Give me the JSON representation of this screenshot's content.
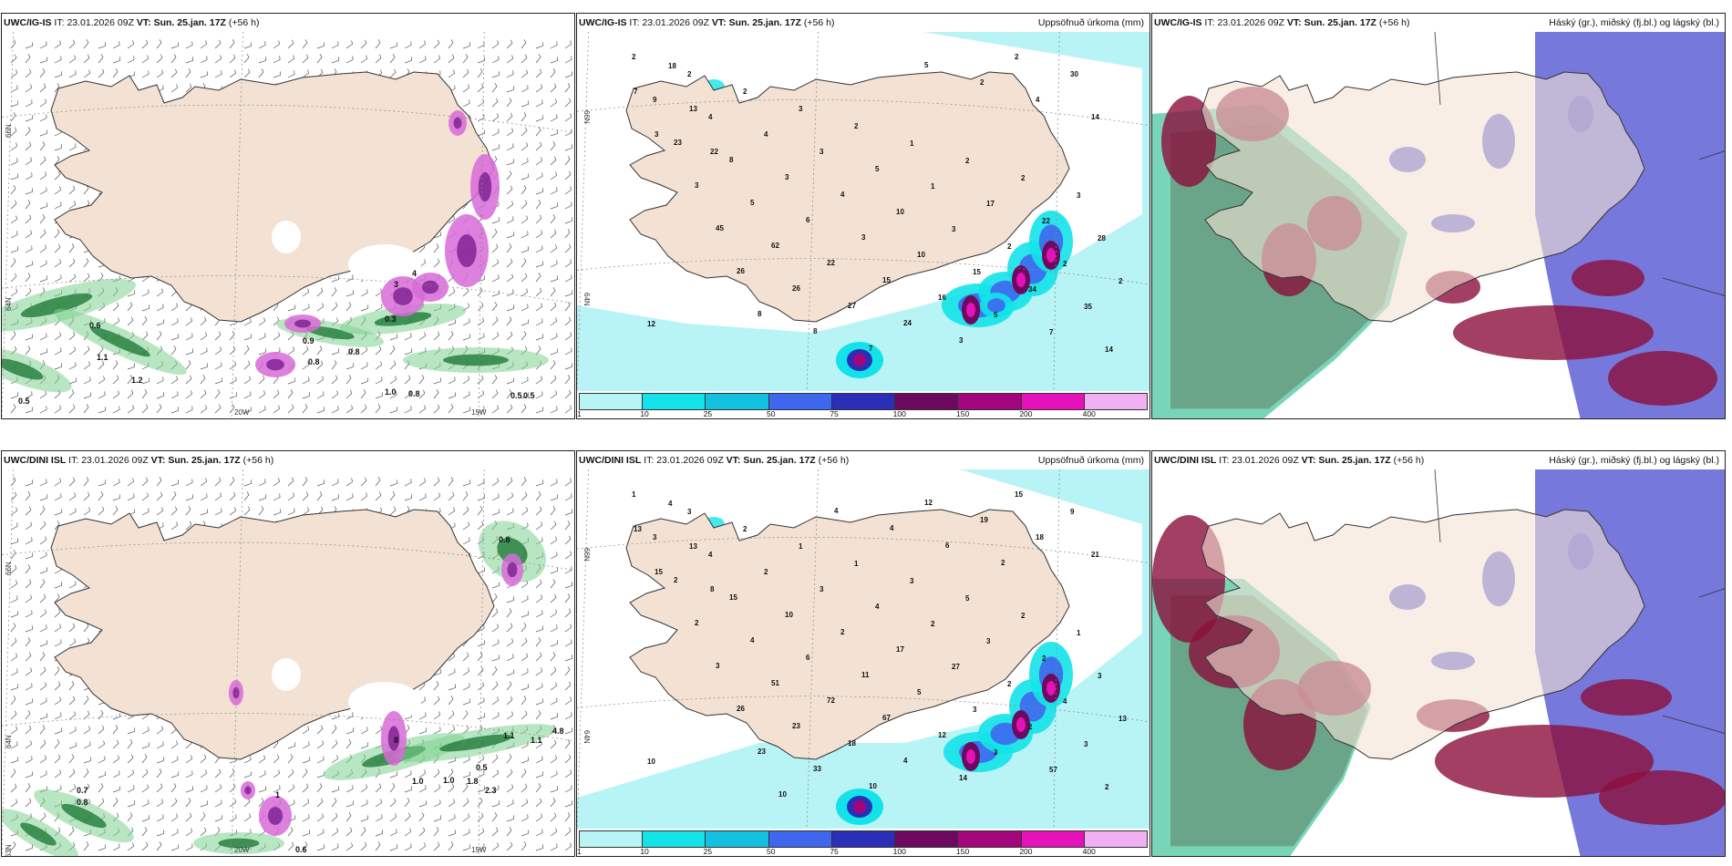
{
  "colors": {
    "land": "#f3e2d3",
    "coast": "#333333",
    "green": "#7fd18f",
    "green_dark": "#1f7a3a",
    "magenta": "#d86ad8",
    "purple": "#7b1e8f",
    "precip": [
      "#b8f3f5",
      "#13e3e8",
      "#14c0e0",
      "#3e67ee",
      "#2b2fb8",
      "#6d0a5f",
      "#a3067c",
      "#e511b9",
      "#f0b0f2"
    ],
    "cloud_high": "#1fb989",
    "cloud_mid": "#8b0f3c",
    "cloud_low": "#4a4bd0"
  },
  "rows": [
    {
      "model": "UWC/IG-IS",
      "panels": [
        {
          "type": "wind",
          "header": {
            "model": "UWC/IG-IS",
            "it_label": "IT:",
            "it_value": "23.01.2026 09Z",
            "vt_label": "VT:",
            "vt_value": "Sun. 25.jan. 17Z",
            "lead": "(+56 h)"
          },
          "coords": {
            "lat_upper": "66N",
            "lat_lower": "64N",
            "lon_west": "20W",
            "lon_east": "15W"
          },
          "values": [
            "0.6",
            "1.1",
            "1.2",
            "0.5",
            "0.9",
            "0.8",
            "0.8",
            "1.0",
            "0.8",
            "0.5",
            "0.5",
            "0.3",
            "3",
            "4"
          ]
        },
        {
          "type": "precip",
          "header": {
            "model": "UWC/IG-IS",
            "it_label": "IT:",
            "it_value": "23.01.2026 09Z",
            "vt_label": "VT:",
            "vt_value": "Sun. 25.jan. 17Z",
            "lead": "(+56 h)",
            "title": "Uppsöfnuð úrkoma (mm)"
          },
          "coords": {
            "lat_upper": "66N",
            "lat_lower": "64N"
          },
          "values": [
            "2",
            "2",
            "2",
            "3",
            "2",
            "1",
            "2",
            "2",
            "3",
            "9",
            "4",
            "4",
            "3",
            "5",
            "1",
            "17",
            "22",
            "28",
            "23",
            "8",
            "3",
            "4",
            "10",
            "3",
            "2",
            "2",
            "2",
            "3",
            "5",
            "6",
            "3",
            "10",
            "15",
            "34",
            "35",
            "12",
            "45",
            "62",
            "22",
            "15",
            "16",
            "5",
            "7",
            "14",
            "18",
            "26",
            "26",
            "27",
            "24",
            "3",
            "2",
            "30",
            "7",
            "13",
            "8",
            "8",
            "7",
            "5",
            "2",
            "4",
            "14",
            "3",
            "22"
          ],
          "legend": [
            "1",
            "10",
            "25",
            "50",
            "75",
            "100",
            "150",
            "200",
            "400"
          ]
        },
        {
          "type": "cloud",
          "header": {
            "model": "UWC/IG-IS",
            "it_label": "IT:",
            "it_value": "23.01.2026 09Z",
            "vt_label": "VT:",
            "vt_value": "Sun. 25.jan. 17Z",
            "lead": "(+56 h)",
            "title": "Háský (gr.), miðský (fj.bl.) og lágský (bl.)"
          }
        }
      ]
    },
    {
      "model": "UWC/DINI ISL",
      "panels": [
        {
          "type": "wind",
          "header": {
            "model": "UWC/DINI ISL",
            "it_label": "IT:",
            "it_value": "23.01.2026 09Z",
            "vt_label": "VT:",
            "vt_value": "Sun. 25.jan. 17Z",
            "lead": "(+56 h)"
          },
          "coords": {
            "lat_upper": "66N",
            "lat_lower": "64N",
            "lon_west": "20W",
            "lon_east": "15W",
            "lat_bottom": "63N"
          },
          "values": [
            "0.8",
            "8",
            "1.0",
            "1.0",
            "0.5",
            "2.3",
            "1.1",
            "1.1",
            "4.8",
            "0.7",
            "0.8",
            "0.6",
            "1",
            "1.8"
          ]
        },
        {
          "type": "precip",
          "header": {
            "model": "UWC/DINI ISL",
            "it_label": "IT:",
            "it_value": "23.01.2026 09Z",
            "vt_label": "VT:",
            "vt_value": "Sun. 25.jan. 17Z",
            "lead": "(+56 h)",
            "title": "Uppsöfnuð úrkoma (mm)"
          },
          "coords": {
            "lat_upper": "66N",
            "lat_lower": "64N"
          },
          "values": [
            "1",
            "3",
            "2",
            "1",
            "1",
            "3",
            "5",
            "2",
            "1",
            "3",
            "4",
            "2",
            "3",
            "4",
            "2",
            "3",
            "2",
            "3",
            "2",
            "15",
            "10",
            "2",
            "17",
            "27",
            "2",
            "4",
            "13",
            "2",
            "4",
            "6",
            "11",
            "5",
            "3",
            "2",
            "3",
            "10",
            "3",
            "51",
            "72",
            "67",
            "12",
            "3",
            "57",
            "2",
            "4",
            "26",
            "23",
            "18",
            "4",
            "14",
            "15",
            "9",
            "13",
            "13",
            "23",
            "33",
            "10",
            "12",
            "19",
            "18",
            "21",
            "15",
            "8",
            "10",
            "4",
            "4",
            "6",
            "2"
          ],
          "legend": [
            "1",
            "10",
            "25",
            "50",
            "75",
            "100",
            "150",
            "200",
            "400"
          ]
        },
        {
          "type": "cloud",
          "header": {
            "model": "UWC/DINI ISL",
            "it_label": "IT:",
            "it_value": "23.01.2026 09Z",
            "vt_label": "VT:",
            "vt_value": "Sun. 25.jan. 17Z",
            "lead": "(+56 h)",
            "title": "Háský (gr.), miðský (fj.bl.) og lágský (bl.)"
          }
        }
      ]
    }
  ]
}
